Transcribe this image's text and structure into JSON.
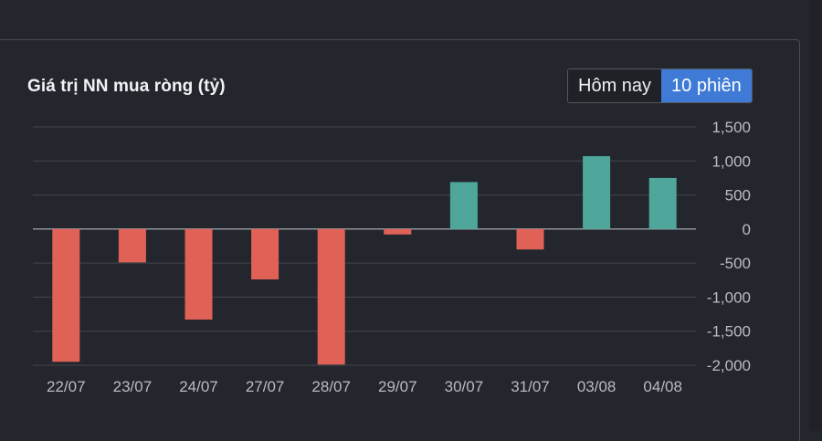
{
  "title": "Giá trị NN mua ròng (tỷ)",
  "toggle": {
    "options": [
      "Hôm nay",
      "10 phiên"
    ],
    "active_index": 1
  },
  "colors": {
    "positive": "#4ea79a",
    "negative": "#e06257",
    "active_button": "#3f7bd6",
    "background": "#24262e"
  },
  "chart_data": {
    "type": "bar",
    "title": "Giá trị NN mua ròng (tỷ)",
    "xlabel": "",
    "ylabel": "",
    "categories": [
      "22/07",
      "23/07",
      "24/07",
      "27/07",
      "28/07",
      "29/07",
      "30/07",
      "31/07",
      "03/08",
      "04/08"
    ],
    "values": [
      -1950,
      -490,
      -1330,
      -740,
      -1990,
      -80,
      690,
      -300,
      1070,
      750
    ],
    "ylim": [
      -2000,
      1500
    ],
    "yticks": [
      1500,
      1000,
      500,
      0,
      -500,
      -1000,
      -1500,
      -2000
    ],
    "ytick_labels": [
      "1,500",
      "1,000",
      "500",
      "0",
      "-500",
      "-1,000",
      "-1,500",
      "-2,000"
    ],
    "grid": true,
    "legend": "none"
  }
}
